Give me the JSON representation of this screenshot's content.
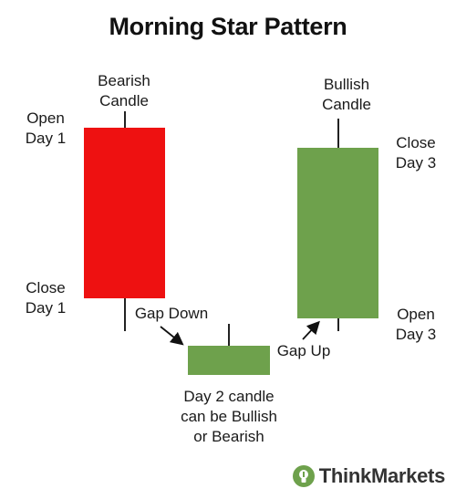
{
  "title": "Morning Star Pattern",
  "colors": {
    "bearish": "#ee1111",
    "bullish": "#6ea14c",
    "day2": "#6ea14c"
  },
  "labels": {
    "bearish_candle": [
      "Bearish",
      "Candle"
    ],
    "bullish_candle": [
      "Bullish",
      "Candle"
    ],
    "open_day1": [
      "Open",
      "Day 1"
    ],
    "close_day1": [
      "Close",
      "Day 1"
    ],
    "close_day3": [
      "Close",
      "Day 3"
    ],
    "open_day3": [
      "Open",
      "Day 3"
    ],
    "gap_down": "Gap Down",
    "gap_up": "Gap Up",
    "day2_note": [
      "Day 2 candle",
      "can be Bullish",
      "or Bearish"
    ]
  },
  "logo": {
    "icon": "lightbulb-icon",
    "text": "ThinkMarkets"
  }
}
